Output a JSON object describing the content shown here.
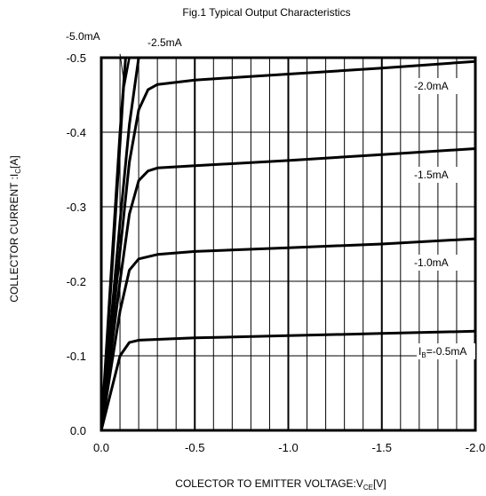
{
  "chart_data": {
    "type": "line",
    "title": "Fig.1 Typical Output Characteristics",
    "xlabel": {
      "prefix": "COLECTOR TO EMITTER VOLTAGE:V",
      "sub": "CE",
      "suffix": "[V]"
    },
    "ylabel": {
      "prefix": "COLLECTOR CURRENT :I",
      "sub": "C",
      "suffix": "[A]"
    },
    "xlim": [
      0.0,
      -2.0
    ],
    "ylim": [
      0.0,
      -0.5
    ],
    "x_ticks": [
      0.0,
      -0.5,
      -1.0,
      -1.5,
      -2.0
    ],
    "x_tick_labels": [
      "0.0",
      "-0.5",
      "-1.0",
      "-1.5",
      "-2.0"
    ],
    "y_ticks": [
      0.0,
      -0.1,
      -0.2,
      -0.3,
      -0.4,
      -0.5
    ],
    "y_tick_labels": [
      "0.0",
      "-0.1",
      "-0.2",
      "-0.3",
      "-0.4",
      "-0.5"
    ],
    "grid": true,
    "minor_x_step": -0.1,
    "series": [
      {
        "name": "-0.5mA",
        "label_prefix": "I",
        "label_sub": "B",
        "label_main": "=-0.5mA",
        "points": [
          [
            0,
            0
          ],
          [
            -0.05,
            -0.05
          ],
          [
            -0.1,
            -0.1
          ],
          [
            -0.15,
            -0.118
          ],
          [
            -0.2,
            -0.121
          ],
          [
            -0.3,
            -0.122
          ],
          [
            -0.5,
            -0.124
          ],
          [
            -1.0,
            -0.127
          ],
          [
            -1.5,
            -0.13
          ],
          [
            -2.0,
            -0.133
          ]
        ]
      },
      {
        "name": "-1.0mA",
        "label_main": "-1.0mA",
        "points": [
          [
            0,
            0
          ],
          [
            -0.05,
            -0.08
          ],
          [
            -0.1,
            -0.16
          ],
          [
            -0.15,
            -0.215
          ],
          [
            -0.2,
            -0.23
          ],
          [
            -0.3,
            -0.236
          ],
          [
            -0.5,
            -0.24
          ],
          [
            -1.0,
            -0.245
          ],
          [
            -1.5,
            -0.25
          ],
          [
            -2.0,
            -0.257
          ]
        ]
      },
      {
        "name": "-1.5mA",
        "label_main": "-1.5mA",
        "points": [
          [
            0,
            0
          ],
          [
            -0.05,
            -0.1
          ],
          [
            -0.1,
            -0.2
          ],
          [
            -0.15,
            -0.29
          ],
          [
            -0.2,
            -0.335
          ],
          [
            -0.25,
            -0.348
          ],
          [
            -0.3,
            -0.352
          ],
          [
            -0.5,
            -0.355
          ],
          [
            -1.0,
            -0.362
          ],
          [
            -1.5,
            -0.37
          ],
          [
            -2.0,
            -0.378
          ]
        ]
      },
      {
        "name": "-2.0mA",
        "label_main": "-2.0mA",
        "points": [
          [
            0,
            0
          ],
          [
            -0.05,
            -0.12
          ],
          [
            -0.1,
            -0.24
          ],
          [
            -0.15,
            -0.36
          ],
          [
            -0.2,
            -0.43
          ],
          [
            -0.25,
            -0.457
          ],
          [
            -0.3,
            -0.464
          ],
          [
            -0.5,
            -0.47
          ],
          [
            -1.0,
            -0.478
          ],
          [
            -1.5,
            -0.486
          ],
          [
            -2.0,
            -0.495
          ]
        ]
      },
      {
        "name": "-2.5mA",
        "label_main": "-2.5mA",
        "points": [
          [
            0,
            0
          ],
          [
            -0.05,
            -0.14
          ],
          [
            -0.1,
            -0.28
          ],
          [
            -0.15,
            -0.41
          ],
          [
            -0.2,
            -0.5
          ]
        ]
      },
      {
        "name": "-5.0mA",
        "label_main": "-5.0mA",
        "points": [
          [
            0,
            0
          ],
          [
            -0.05,
            -0.2
          ],
          [
            -0.1,
            -0.4
          ],
          [
            -0.13,
            -0.5
          ]
        ]
      }
    ],
    "extra_lines": [
      [
        [
          0,
          0
        ],
        [
          -0.06,
          -0.22
        ],
        [
          -0.12,
          -0.46
        ],
        [
          -0.15,
          -0.5
        ]
      ]
    ],
    "leader_line": {
      "from": [
        -0.1,
        -0.505
      ],
      "to": [
        -0.12,
        -0.47
      ]
    }
  }
}
